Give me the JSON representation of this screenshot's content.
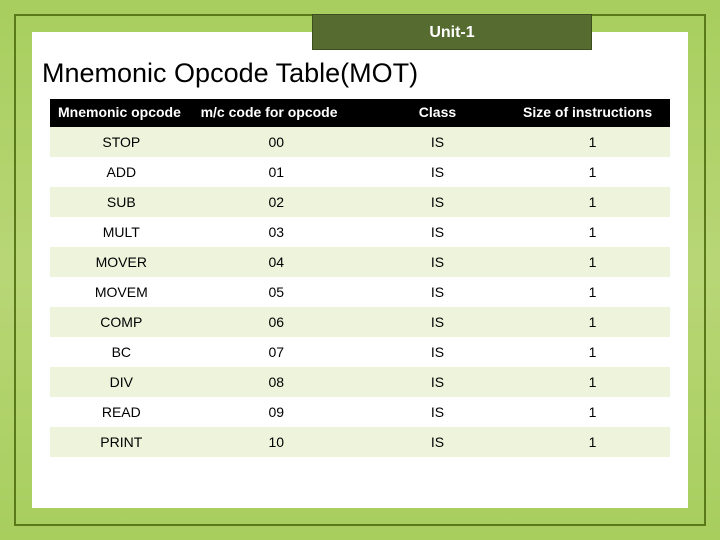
{
  "unit_label": "Unit-1",
  "title": "Mnemonic Opcode Table(MOT)",
  "table": {
    "columns": [
      " Mnemonic opcode",
      "m/c code for opcode",
      "Class",
      "Size of instructions"
    ],
    "rows": [
      {
        "mnemonic": "STOP",
        "code": "00",
        "class": "IS",
        "size": "1"
      },
      {
        "mnemonic": "ADD",
        "code": "01",
        "class": "IS",
        "size": "1"
      },
      {
        "mnemonic": "SUB",
        "code": "02",
        "class": "IS",
        "size": "1"
      },
      {
        "mnemonic": "MULT",
        "code": "03",
        "class": "IS",
        "size": "1"
      },
      {
        "mnemonic": "MOVER",
        "code": "04",
        "class": "IS",
        "size": "1"
      },
      {
        "mnemonic": "MOVEM",
        "code": "05",
        "class": "IS",
        "size": "1"
      },
      {
        "mnemonic": "COMP",
        "code": "06",
        "class": "IS",
        "size": "1"
      },
      {
        "mnemonic": "BC",
        "code": "07",
        "class": "IS",
        "size": "1"
      },
      {
        "mnemonic": "DIV",
        "code": "08",
        "class": "IS",
        "size": "1"
      },
      {
        "mnemonic": "READ",
        "code": "09",
        "class": "IS",
        "size": "1"
      },
      {
        "mnemonic": "PRINT",
        "code": "10",
        "class": "IS",
        "size": "1"
      }
    ],
    "header_bg": "#000000",
    "header_fg": "#ffffff",
    "row_odd_bg": "#eef3dc",
    "row_even_bg": "#ffffff",
    "font_size": 14
  },
  "colors": {
    "slide_bg_top": "#a8ce5e",
    "slide_bg_mid": "#b8d676",
    "frame_border": "#5a7a1a",
    "unit_box_bg": "#556b2f",
    "unit_box_fg": "#ffffff",
    "content_bg": "#ffffff",
    "title_fg": "#000000"
  }
}
